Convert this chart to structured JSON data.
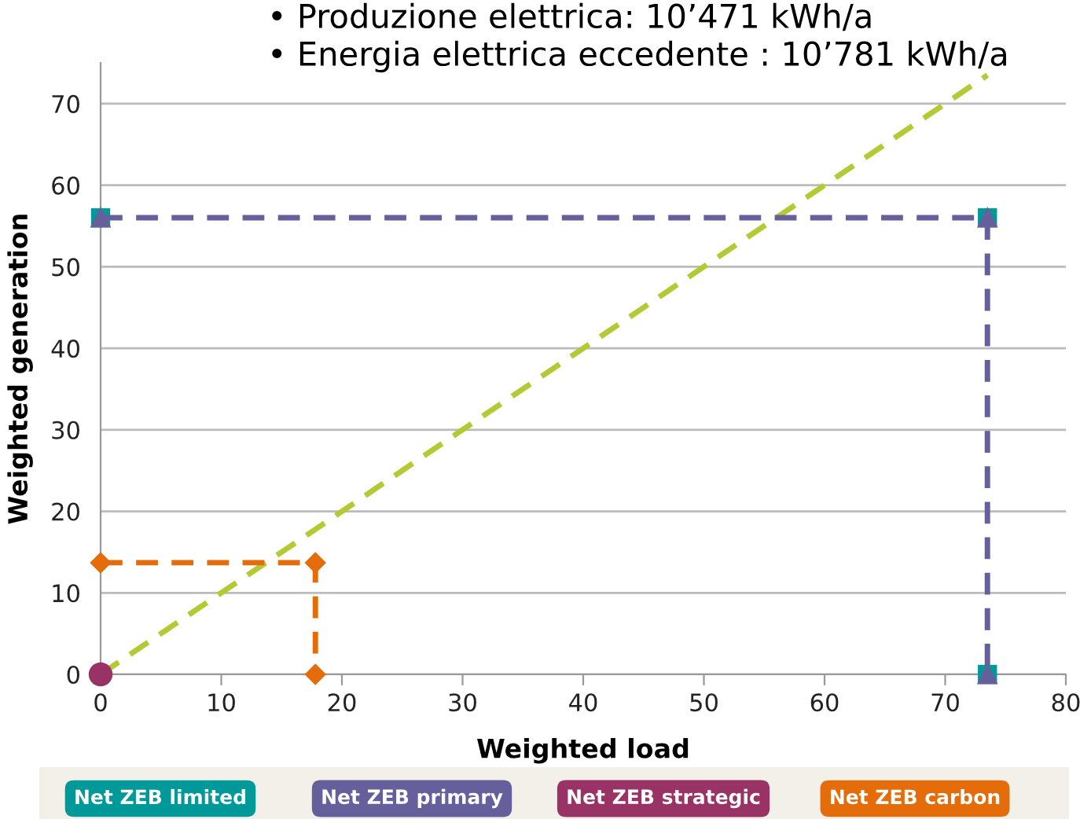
{
  "chart_data": {
    "type": "line",
    "xlabel": "Weighted load",
    "ylabel": "Weighted generation",
    "annotations": [
      "• Produzione elettrica: 10’471 kWh/a",
      "• Energia elettrica eccedente : 10’781 kWh/a"
    ],
    "series": [
      {
        "color": "#b5c934",
        "x": [
          0,
          73.5
        ],
        "values": [
          0,
          73.5
        ],
        "line_style": "dashed",
        "marker": "none"
      },
      {
        "name": "Net ZEB limited",
        "type": "scatter",
        "color": "#009999",
        "x": [
          0,
          73.5,
          73.5
        ],
        "values": [
          56,
          56,
          0
        ],
        "marker": "square"
      },
      {
        "name": "Net ZEB primary",
        "color": "#65609b",
        "x": [
          0,
          73.5,
          73.5
        ],
        "values": [
          56,
          56,
          0
        ],
        "line_style": "dashed",
        "marker": "triangle"
      },
      {
        "name": "Net ZEB strategic",
        "type": "scatter",
        "color": "#993366",
        "x": [
          0
        ],
        "values": [
          0
        ],
        "marker": "circle"
      },
      {
        "name": "Net ZEB carbon",
        "color": "#e46c0a",
        "x": [
          0,
          17.8,
          17.8
        ],
        "values": [
          13.7,
          13.7,
          0
        ],
        "line_style": "dashed",
        "marker": "diamond"
      }
    ],
    "xlim": [
      0,
      80
    ],
    "xticks": [
      0,
      10,
      20,
      30,
      40,
      50,
      60,
      70,
      80
    ],
    "ylim": [
      0,
      75
    ],
    "yticks": [
      0,
      10,
      20,
      30,
      40,
      50,
      60,
      70
    ],
    "grid": "y",
    "legend": "bottom"
  }
}
